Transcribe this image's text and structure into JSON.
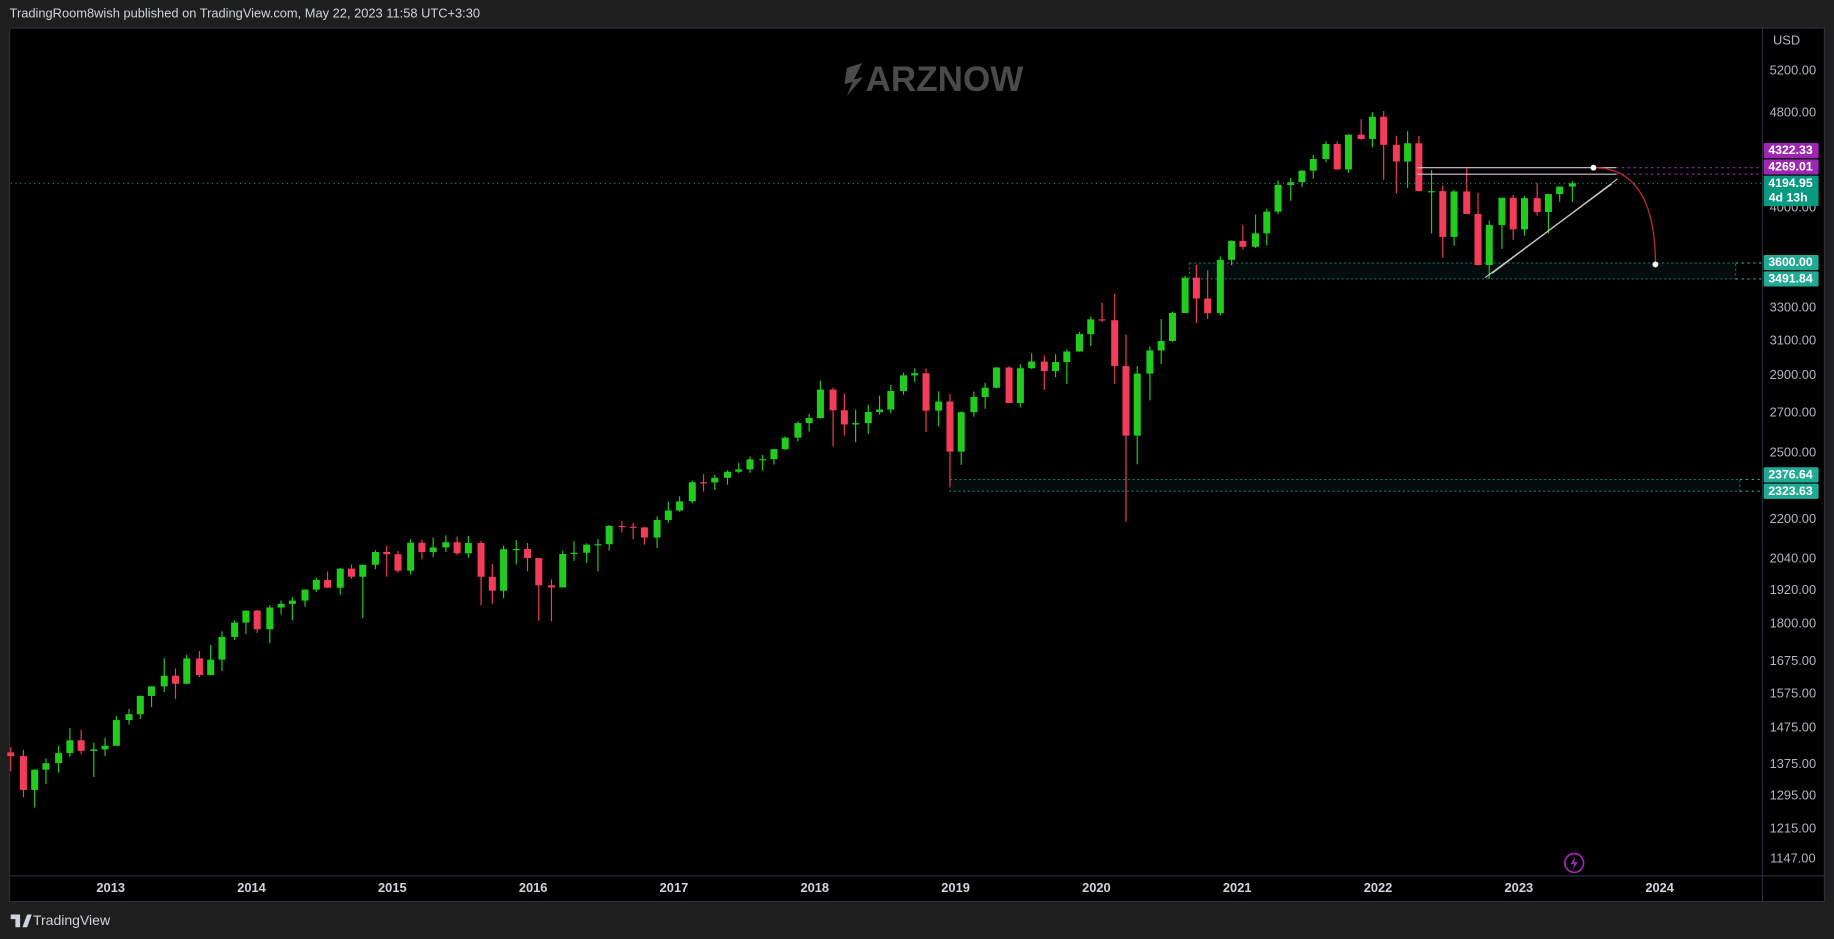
{
  "header": {
    "publish_text": "TradingRoom8wish published on TradingView.com, May 22, 2023 11:58 UTC+3:30"
  },
  "footer": {
    "brand": "TradingView"
  },
  "chart_data": {
    "type": "candlestick",
    "currency": "USD",
    "watermark": "ARZNOW",
    "log_scale": true,
    "xlim": [
      2012.29,
      2024.73
    ],
    "xticks": [
      2013,
      2014,
      2015,
      2016,
      2017,
      2018,
      2019,
      2020,
      2021,
      2022,
      2023,
      2024
    ],
    "ylim": [
      1111,
      5650
    ],
    "yticks": [
      {
        "value": 1147,
        "label": "1147.00"
      },
      {
        "value": 1215,
        "label": "1215.00"
      },
      {
        "value": 1295,
        "label": "1295.00"
      },
      {
        "value": 1375,
        "label": "1375.00"
      },
      {
        "value": 1475,
        "label": "1475.00"
      },
      {
        "value": 1575,
        "label": "1575.00"
      },
      {
        "value": 1675,
        "label": "1675.00"
      },
      {
        "value": 1800,
        "label": "1800.00"
      },
      {
        "value": 1920,
        "label": "1920.00"
      },
      {
        "value": 2040,
        "label": "2040.00"
      },
      {
        "value": 2200,
        "label": "2200.00"
      },
      {
        "value": 2500,
        "label": "2500.00"
      },
      {
        "value": 2700,
        "label": "2700.00"
      },
      {
        "value": 2900,
        "label": "2900.00"
      },
      {
        "value": 3100,
        "label": "3100.00"
      },
      {
        "value": 3300,
        "label": "3300.00"
      },
      {
        "value": 4000,
        "label": "4000.00"
      },
      {
        "value": 4800,
        "label": "4800.00"
      },
      {
        "value": 5200,
        "label": "5200.00"
      }
    ],
    "up_color": "#22cc1e",
    "down_color": "#f23c5a",
    "candles": {
      "x": [
        2012.29,
        2012.38,
        2012.46,
        2012.54,
        2012.63,
        2012.71,
        2012.79,
        2012.88,
        2012.96,
        2013.04,
        2013.13,
        2013.21,
        2013.29,
        2013.38,
        2013.46,
        2013.54,
        2013.63,
        2013.71,
        2013.79,
        2013.88,
        2013.96,
        2014.04,
        2014.13,
        2014.21,
        2014.29,
        2014.38,
        2014.46,
        2014.54,
        2014.63,
        2014.71,
        2014.79,
        2014.88,
        2014.96,
        2015.04,
        2015.13,
        2015.21,
        2015.29,
        2015.38,
        2015.46,
        2015.54,
        2015.63,
        2015.71,
        2015.79,
        2015.88,
        2015.96,
        2016.04,
        2016.13,
        2016.21,
        2016.29,
        2016.38,
        2016.46,
        2016.54,
        2016.63,
        2016.71,
        2016.79,
        2016.88,
        2016.96,
        2017.04,
        2017.13,
        2017.21,
        2017.29,
        2017.38,
        2017.46,
        2017.54,
        2017.63,
        2017.71,
        2017.79,
        2017.88,
        2017.96,
        2018.04,
        2018.13,
        2018.21,
        2018.29,
        2018.38,
        2018.46,
        2018.54,
        2018.63,
        2018.71,
        2018.79,
        2018.88,
        2018.96,
        2019.04,
        2019.13,
        2019.21,
        2019.29,
        2019.38,
        2019.46,
        2019.54,
        2019.63,
        2019.71,
        2019.79,
        2019.88,
        2019.96,
        2020.04,
        2020.13,
        2020.21,
        2020.29,
        2020.38,
        2020.46,
        2020.54,
        2020.63,
        2020.71,
        2020.79,
        2020.88,
        2020.96,
        2021.04,
        2021.13,
        2021.21,
        2021.29,
        2021.38,
        2021.46,
        2021.54,
        2021.63,
        2021.71,
        2021.79,
        2021.88,
        2021.96,
        2022.04,
        2022.13,
        2022.21,
        2022.29,
        2022.38,
        2022.46,
        2022.54,
        2022.63,
        2022.71,
        2022.79,
        2022.88,
        2022.96,
        2023.04,
        2023.13,
        2023.21,
        2023.29,
        2023.38
      ],
      "open": [
        1408,
        1398,
        1310,
        1362,
        1379,
        1406,
        1441,
        1412,
        1416,
        1426,
        1498,
        1515,
        1569,
        1598,
        1631,
        1606,
        1686,
        1633,
        1682,
        1757,
        1806,
        1848,
        1783,
        1859,
        1872,
        1884,
        1924,
        1960,
        1931,
        2003,
        1972,
        2018,
        2068,
        2059,
        1995,
        2105,
        2068,
        2086,
        2107,
        2063,
        2104,
        1972,
        1920,
        2079,
        2080,
        2044,
        1940,
        1932,
        2060,
        2065,
        2097,
        2099,
        2174,
        2171,
        2168,
        2126,
        2199,
        2239,
        2279,
        2364,
        2363,
        2384,
        2412,
        2423,
        2470,
        2471,
        2519,
        2575,
        2648,
        2674,
        2824,
        2714,
        2641,
        2648,
        2705,
        2718,
        2816,
        2902,
        2914,
        2712,
        2760,
        2507,
        2704,
        2784,
        2834,
        2946,
        2752,
        2942,
        2980,
        2926,
        2977,
        3038,
        3141,
        3231,
        3226,
        2954,
        2585,
        2912,
        3044,
        3100,
        3271,
        3500,
        3363,
        3270,
        3622,
        3756,
        3714,
        3811,
        3973,
        4181,
        4204,
        4298,
        4395,
        4523,
        4308,
        4605,
        4567,
        4766,
        4516,
        4374,
        4530,
        4132,
        4132,
        3785,
        4130,
        3955,
        3586,
        3872,
        4080,
        3840,
        4077,
        3970,
        4109,
        4169
      ],
      "high": [
        1422,
        1415,
        1363,
        1392,
        1426,
        1475,
        1470,
        1434,
        1448,
        1510,
        1530,
        1570,
        1598,
        1687,
        1654,
        1698,
        1710,
        1730,
        1776,
        1814,
        1849,
        1851,
        1867,
        1884,
        1897,
        1924,
        1968,
        1992,
        2005,
        2019,
        2018,
        2075,
        2093,
        2072,
        2119,
        2117,
        2126,
        2135,
        2130,
        2133,
        2113,
        2021,
        2094,
        2116,
        2104,
        2044,
        1962,
        2073,
        2111,
        2103,
        2120,
        2178,
        2193,
        2187,
        2169,
        2214,
        2278,
        2301,
        2371,
        2401,
        2398,
        2418,
        2454,
        2484,
        2491,
        2519,
        2582,
        2657,
        2695,
        2873,
        2835,
        2801,
        2718,
        2742,
        2791,
        2849,
        2917,
        2941,
        2940,
        2815,
        2800,
        2708,
        2813,
        2861,
        2949,
        2954,
        2964,
        3028,
        3014,
        3022,
        3050,
        3155,
        3248,
        3337,
        3394,
        3137,
        2955,
        3068,
        3233,
        3280,
        3513,
        3588,
        3550,
        3646,
        3760,
        3870,
        3950,
        3994,
        4218,
        4238,
        4302,
        4429,
        4546,
        4546,
        4608,
        4743,
        4808,
        4819,
        4595,
        4637,
        4593,
        4303,
        4178,
        4140,
        4325,
        4120,
        3905,
        4080,
        4101,
        4095,
        4195,
        4110,
        4170,
        4212
      ],
      "low": [
        1358,
        1292,
        1267,
        1325,
        1354,
        1396,
        1403,
        1343,
        1398,
        1426,
        1485,
        1501,
        1536,
        1581,
        1560,
        1605,
        1627,
        1633,
        1646,
        1747,
        1767,
        1770,
        1737,
        1834,
        1814,
        1862,
        1915,
        1930,
        1905,
        1964,
        1821,
        2001,
        1972,
        1988,
        1981,
        2039,
        2048,
        2068,
        2056,
        2045,
        1867,
        1872,
        1893,
        2019,
        1993,
        1812,
        1810,
        1932,
        2033,
        2025,
        1992,
        2074,
        2147,
        2119,
        2097,
        2084,
        2187,
        2234,
        2271,
        2322,
        2329,
        2353,
        2405,
        2407,
        2417,
        2446,
        2515,
        2557,
        2605,
        2671,
        2533,
        2586,
        2553,
        2594,
        2691,
        2699,
        2796,
        2864,
        2603,
        2631,
        2346,
        2444,
        2681,
        2722,
        2832,
        2751,
        2729,
        2938,
        2822,
        2892,
        2855,
        3036,
        3070,
        3214,
        2855,
        2192,
        2447,
        2766,
        2966,
        3095,
        3271,
        3209,
        3234,
        3255,
        3585,
        3694,
        3705,
        3723,
        3955,
        4056,
        4164,
        4233,
        4368,
        4306,
        4279,
        4560,
        4495,
        4223,
        4115,
        4157,
        4132,
        3811,
        3637,
        3722,
        3955,
        3585,
        3492,
        3699,
        3764,
        3794,
        3943,
        3809,
        4049,
        4048
      ],
      "close": [
        1398,
        1310,
        1362,
        1379,
        1406,
        1441,
        1412,
        1416,
        1426,
        1498,
        1515,
        1569,
        1598,
        1631,
        1606,
        1686,
        1633,
        1682,
        1757,
        1806,
        1848,
        1783,
        1859,
        1872,
        1884,
        1924,
        1960,
        1931,
        2003,
        1972,
        2018,
        2068,
        2059,
        1995,
        2105,
        2068,
        2086,
        2107,
        2063,
        2104,
        1972,
        1920,
        2079,
        2080,
        2044,
        1940,
        1932,
        2060,
        2065,
        2097,
        2099,
        2174,
        2171,
        2168,
        2126,
        2199,
        2239,
        2279,
        2364,
        2363,
        2384,
        2412,
        2423,
        2470,
        2471,
        2519,
        2575,
        2648,
        2674,
        2824,
        2714,
        2641,
        2648,
        2705,
        2718,
        2816,
        2902,
        2914,
        2712,
        2760,
        2507,
        2704,
        2784,
        2834,
        2946,
        2752,
        2942,
        2980,
        2926,
        2977,
        3038,
        3141,
        3231,
        3226,
        2954,
        2585,
        2912,
        3044,
        3100,
        3271,
        3500,
        3363,
        3270,
        3622,
        3756,
        3714,
        3811,
        3973,
        4181,
        4204,
        4298,
        4395,
        4523,
        4308,
        4605,
        4567,
        4766,
        4516,
        4374,
        4530,
        4132,
        4132,
        3785,
        4130,
        3955,
        3586,
        3872,
        4080,
        3840,
        4077,
        3970,
        4109,
        4169,
        4194.95
      ]
    },
    "last_price": {
      "value": 4194.95,
      "label": "4194.95",
      "countdown": "4d 13h",
      "color": "#089981"
    },
    "lines": [
      {
        "value": 4322.33,
        "label": "4322.33",
        "from": 2022.28,
        "to": 2023.69,
        "color": "#9c27b0"
      },
      {
        "value": 4269.01,
        "label": "4269.01",
        "from": 2022.28,
        "to": 2023.69,
        "color": "#9c27b0"
      }
    ],
    "zones": [
      {
        "from": 2020.66,
        "to": 2024.54,
        "color": "#22ab94",
        "levels": [
          {
            "value": 3600,
            "label": "3600.00"
          },
          {
            "value": 3491.84,
            "label": "3491.84"
          }
        ]
      },
      {
        "from": 2018.96,
        "to": 2024.57,
        "color": "#22ab94",
        "levels": [
          {
            "value": 2376.64,
            "label": "2376.64"
          },
          {
            "value": 2323.63,
            "label": "2323.63"
          }
        ]
      }
    ],
    "trend_lines": [
      {
        "x": [
          2022.76,
          2023.66
        ],
        "y": [
          3500,
          4190
        ]
      },
      {
        "x": [
          2022.81,
          2023.7
        ],
        "y": [
          3530,
          4230
        ]
      }
    ],
    "arc": {
      "x": [
        2023.53,
        2023.97
      ],
      "y": [
        4322,
        3590
      ],
      "color": "#b22833"
    }
  }
}
